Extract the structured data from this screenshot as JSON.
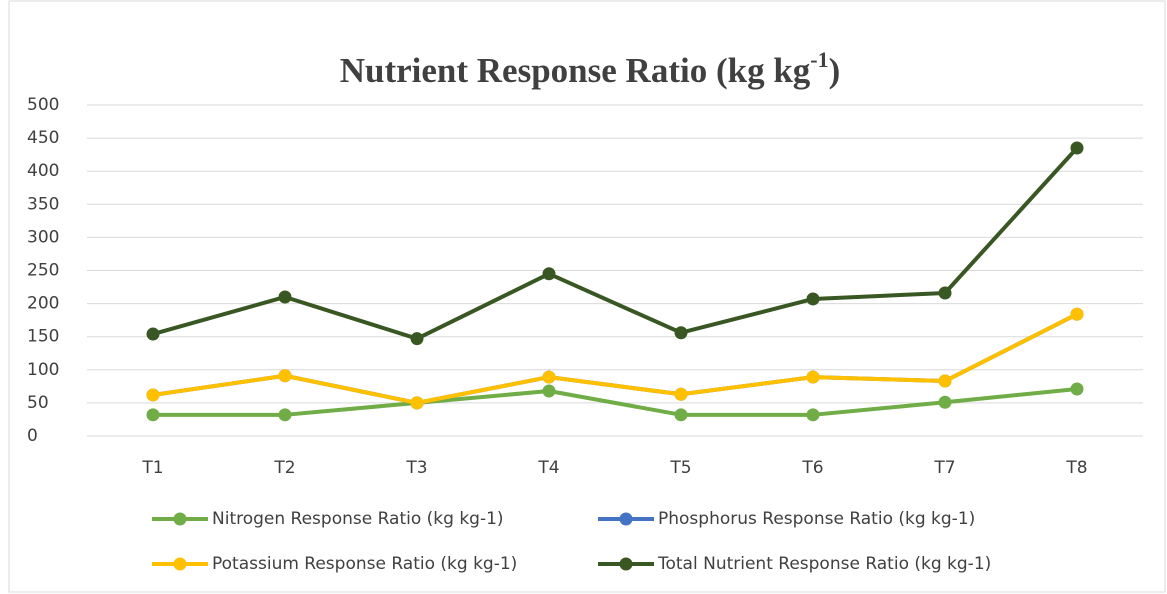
{
  "chart_data": {
    "type": "line",
    "title": "Nutrient Response Ratio (kg kg-1)",
    "categories": [
      "T1",
      "T2",
      "T3",
      "T4",
      "T5",
      "T6",
      "T7",
      "T8"
    ],
    "series": [
      {
        "name": "Nitrogen Response Ratio (kg kg-1)",
        "color": "#70ad47",
        "values": [
          32,
          32,
          50,
          68,
          32,
          32,
          51,
          71
        ]
      },
      {
        "name": "Phosphorus Response Ratio (kg kg-1)",
        "color": "#4472c4",
        "values": [
          62,
          91,
          50,
          89,
          63,
          89,
          83,
          184
        ]
      },
      {
        "name": "Potassium Response Ratio (kg kg-1)",
        "color": "#ffc000",
        "values": [
          62,
          91,
          50,
          89,
          63,
          89,
          83,
          184
        ]
      },
      {
        "name": "Total Nutrient Response Ratio (kg kg-1)",
        "color": "#385723",
        "values": [
          154,
          210,
          147,
          245,
          156,
          207,
          216,
          435
        ]
      }
    ],
    "ylim": [
      0,
      500
    ],
    "yticks": [
      0,
      50,
      100,
      150,
      200,
      250,
      300,
      350,
      400,
      450,
      500
    ],
    "grid": true
  }
}
